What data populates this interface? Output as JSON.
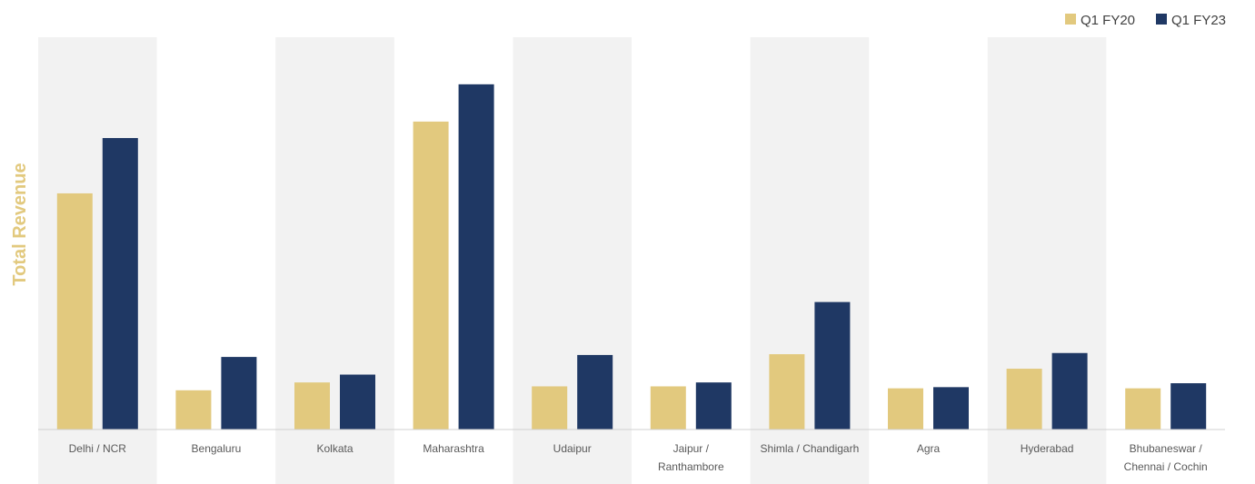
{
  "chart_data": {
    "type": "bar",
    "title": "",
    "xlabel": "",
    "ylabel": "Total Revenue",
    "ylim": [
      0,
      100
    ],
    "y_tick_labels_shown": false,
    "categories": [
      [
        "Delhi / NCR"
      ],
      [
        "Bengaluru"
      ],
      [
        "Kolkata"
      ],
      [
        "Maharashtra"
      ],
      [
        "Udaipur"
      ],
      [
        "Jaipur /",
        "Ranthambore"
      ],
      [
        "Shimla / Chandigarh"
      ],
      [
        "Agra"
      ],
      [
        "Hyderabad"
      ],
      [
        "Bhubaneswar /",
        "Chennai / Cochin"
      ]
    ],
    "series": [
      {
        "name": "Q1 FY20",
        "color": "#E2C97E",
        "values": [
          60.2,
          10.0,
          12.0,
          78.5,
          11.0,
          11.0,
          19.2,
          10.5,
          15.5,
          10.5
        ]
      },
      {
        "name": "Q1 FY23",
        "color": "#1F3864",
        "values": [
          74.3,
          18.5,
          14.0,
          88.0,
          19.0,
          12.0,
          32.5,
          10.8,
          19.5,
          11.8
        ]
      }
    ],
    "legend_position": "top-right",
    "grid": false,
    "alternating_band_color": "#F2F2F2",
    "axis_title_color": "#E2C97E"
  }
}
